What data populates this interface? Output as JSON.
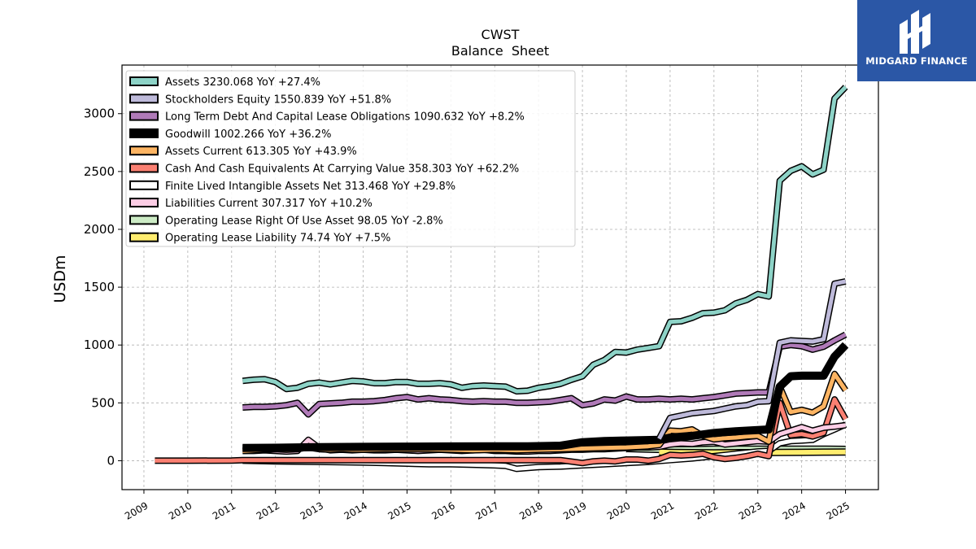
{
  "logo": {
    "text": "MIDGARD FINANCE",
    "icon": "midgard-logo-icon"
  },
  "chart_data": {
    "type": "line",
    "title": "CWST",
    "subtitle": "Balance  Sheet",
    "ylabel": "USDm",
    "xlabel": "",
    "xlim": [
      2008.5,
      2025.75
    ],
    "ylim": [
      -250,
      3420
    ],
    "x_ticks": [
      "2009",
      "2010",
      "2011",
      "2012",
      "2013",
      "2014",
      "2015",
      "2016",
      "2017",
      "2018",
      "2019",
      "2020",
      "2021",
      "2022",
      "2023",
      "2024",
      "2025"
    ],
    "y_ticks": [
      "0",
      "500",
      "1000",
      "1500",
      "2000",
      "2500",
      "3000"
    ],
    "grid": true,
    "legend_placement": "top-left",
    "series": [
      {
        "name": "Assets",
        "legend": "Assets  3230.068 YoY +27.4%",
        "color": "#8dd3c7",
        "width": 5,
        "x": [
          2011.25,
          2011.5,
          2011.75,
          2012.0,
          2012.25,
          2012.5,
          2012.75,
          2013.0,
          2013.25,
          2013.5,
          2013.75,
          2014.0,
          2014.25,
          2014.5,
          2014.75,
          2015.0,
          2015.25,
          2015.5,
          2015.75,
          2016.0,
          2016.25,
          2016.5,
          2016.75,
          2017.0,
          2017.25,
          2017.5,
          2017.75,
          2018.0,
          2018.25,
          2018.5,
          2018.75,
          2019.0,
          2019.25,
          2019.5,
          2019.75,
          2020.0,
          2020.25,
          2020.5,
          2020.75,
          2021.0,
          2021.25,
          2021.5,
          2021.75,
          2022.0,
          2022.25,
          2022.5,
          2022.75,
          2023.0,
          2023.25,
          2023.5,
          2023.75,
          2024.0,
          2024.25,
          2024.5,
          2024.75,
          2025.0
        ],
        "y": [
          690,
          700,
          705,
          680,
          620,
          630,
          665,
          675,
          660,
          675,
          690,
          685,
          670,
          670,
          680,
          680,
          665,
          665,
          670,
          660,
          630,
          645,
          650,
          645,
          640,
          600,
          605,
          630,
          645,
          665,
          700,
          730,
          830,
          870,
          940,
          935,
          960,
          975,
          990,
          1200,
          1205,
          1235,
          1275,
          1280,
          1300,
          1360,
          1390,
          1440,
          1420,
          2420,
          2505,
          2545,
          2475,
          2515,
          3130,
          3230
        ]
      },
      {
        "name": "Stockholders Equity",
        "legend": "Stockholders Equity  1550.839 YoY +51.8%",
        "color": "#bebada",
        "width": 5,
        "x": [
          2020.75,
          2021.0,
          2021.25,
          2021.5,
          2021.75,
          2022.0,
          2022.25,
          2022.5,
          2022.75,
          2023.0,
          2023.25,
          2023.5,
          2023.75,
          2024.0,
          2024.25,
          2024.5,
          2024.75,
          2025.0
        ],
        "y": [
          190,
          370,
          390,
          410,
          420,
          430,
          450,
          470,
          480,
          510,
          515,
          1020,
          1040,
          1035,
          1030,
          1050,
          1530,
          1550
        ]
      },
      {
        "name": "Long Term Debt And Capital Lease Obligations",
        "legend": "Long Term Debt And Capital Lease Obligations  1090.632 YoY +8.2%",
        "color": "#b07ab8",
        "width": 5,
        "x": [
          2011.25,
          2011.5,
          2011.75,
          2012.0,
          2012.25,
          2012.5,
          2012.75,
          2013.0,
          2013.25,
          2013.5,
          2013.75,
          2014.0,
          2014.25,
          2014.5,
          2014.75,
          2015.0,
          2015.25,
          2015.5,
          2015.75,
          2016.0,
          2016.25,
          2016.5,
          2016.75,
          2017.0,
          2017.25,
          2017.5,
          2017.75,
          2018.0,
          2018.25,
          2018.5,
          2018.75,
          2019.0,
          2019.25,
          2019.5,
          2019.75,
          2020.0,
          2020.25,
          2020.5,
          2020.75,
          2021.0,
          2021.25,
          2021.5,
          2021.75,
          2022.0,
          2022.25,
          2022.5,
          2022.75,
          2023.0,
          2023.25,
          2023.5,
          2023.75,
          2024.0,
          2024.25,
          2024.5,
          2024.75,
          2025.0
        ],
        "y": [
          460,
          465,
          465,
          470,
          480,
          500,
          400,
          490,
          495,
          500,
          510,
          510,
          515,
          525,
          540,
          550,
          530,
          540,
          530,
          525,
          515,
          510,
          515,
          510,
          510,
          500,
          500,
          505,
          510,
          525,
          540,
          480,
          495,
          530,
          520,
          555,
          530,
          530,
          535,
          530,
          535,
          530,
          540,
          550,
          565,
          580,
          585,
          590,
          590,
          985,
          1000,
          990,
          960,
          985,
          1040,
          1090
        ]
      },
      {
        "name": "Goodwill",
        "legend": "Goodwill  1002.266 YoY +36.2%",
        "color": "#000000",
        "width": 7,
        "x": [
          2011.25,
          2012.0,
          2013.0,
          2014.0,
          2015.0,
          2016.0,
          2017.0,
          2017.75,
          2018.0,
          2018.5,
          2019.0,
          2019.5,
          2020.0,
          2020.75,
          2021.0,
          2021.5,
          2022.0,
          2022.5,
          2023.0,
          2023.25,
          2023.5,
          2023.75,
          2024.0,
          2024.5,
          2024.75,
          2025.0
        ],
        "y": [
          110,
          112,
          118,
          120,
          122,
          123,
          124,
          125,
          126,
          130,
          160,
          170,
          175,
          180,
          200,
          215,
          240,
          255,
          265,
          270,
          640,
          730,
          735,
          735,
          900,
          1000
        ]
      },
      {
        "name": "Assets Current",
        "legend": "Assets Current  613.305 YoY +43.9%",
        "color": "#fdb462",
        "width": 5,
        "x": [
          2011.25,
          2011.5,
          2011.75,
          2012.0,
          2012.25,
          2012.5,
          2012.75,
          2013.0,
          2013.25,
          2013.5,
          2013.75,
          2014.0,
          2014.5,
          2015.0,
          2015.5,
          2016.0,
          2016.5,
          2017.0,
          2017.5,
          2018.0,
          2018.5,
          2019.0,
          2019.5,
          2020.0,
          2020.5,
          2020.75,
          2021.0,
          2021.25,
          2021.5,
          2021.75,
          2022.0,
          2022.25,
          2022.5,
          2022.75,
          2023.0,
          2023.25,
          2023.5,
          2023.75,
          2024.0,
          2024.25,
          2024.5,
          2024.75,
          2025.0
        ],
        "y": [
          85,
          90,
          95,
          100,
          95,
          100,
          115,
          100,
          95,
          100,
          95,
          95,
          100,
          100,
          100,
          95,
          90,
          95,
          90,
          95,
          100,
          105,
          110,
          115,
          125,
          135,
          260,
          255,
          270,
          215,
          185,
          195,
          200,
          210,
          215,
          165,
          640,
          420,
          440,
          415,
          470,
          750,
          610
        ]
      },
      {
        "name": "Cash And Cash Equivalents At Carrying Value",
        "legend": "Cash And Cash Equivalents At Carrying Value  358.303 YoY +62.2%",
        "color": "#fb8072",
        "width": 5,
        "x": [
          2009.25,
          2010.0,
          2011.0,
          2011.25,
          2012.0,
          2013.0,
          2014.0,
          2015.0,
          2016.0,
          2017.0,
          2017.5,
          2018.0,
          2018.5,
          2019.0,
          2019.25,
          2019.5,
          2019.75,
          2020.0,
          2020.25,
          2020.5,
          2020.75,
          2021.0,
          2021.25,
          2021.5,
          2021.75,
          2022.0,
          2022.25,
          2022.5,
          2022.75,
          2023.0,
          2023.25,
          2023.5,
          2023.75,
          2024.0,
          2024.25,
          2024.5,
          2024.75,
          2025.0
        ],
        "y": [
          0,
          0,
          2,
          5,
          5,
          5,
          5,
          5,
          5,
          5,
          5,
          5,
          5,
          -20,
          -5,
          0,
          -5,
          10,
          10,
          0,
          15,
          50,
          45,
          50,
          60,
          30,
          15,
          25,
          40,
          60,
          40,
          500,
          220,
          230,
          210,
          240,
          530,
          360
        ]
      },
      {
        "name": "Finite Lived Intangible Assets Net",
        "legend": "Finite Lived Intangible Assets Net  313.468 YoY +29.8%",
        "color": "#ffffff",
        "width": 5,
        "x": [
          2011.25,
          2012.0,
          2013.0,
          2014.0,
          2014.5,
          2015.0,
          2015.5,
          2016.0,
          2016.5,
          2017.0,
          2017.25,
          2017.5,
          2018.0,
          2018.5,
          2019.0,
          2019.5,
          2020.0,
          2020.5,
          2021.0,
          2021.5,
          2022.0,
          2022.5,
          2023.0,
          2023.25,
          2023.5,
          2023.75,
          2024.0,
          2024.25,
          2024.5,
          2024.75,
          2025.0
        ],
        "y": [
          0,
          -5,
          -10,
          -15,
          -20,
          -25,
          -30,
          -30,
          -35,
          -40,
          -45,
          -70,
          -55,
          -50,
          -40,
          -30,
          -20,
          -10,
          5,
          20,
          40,
          60,
          80,
          85,
          150,
          170,
          175,
          180,
          230,
          270,
          313
        ]
      },
      {
        "name": "Liabilities Current",
        "legend": "Liabilities Current  307.317 YoY +10.2%",
        "color": "#fccde5",
        "width": 5,
        "x": [
          2011.25,
          2011.5,
          2011.75,
          2012.0,
          2012.25,
          2012.5,
          2012.75,
          2013.0,
          2013.25,
          2013.5,
          2013.75,
          2014.0,
          2014.25,
          2014.5,
          2014.75,
          2015.0,
          2015.25,
          2015.5,
          2015.75,
          2016.0,
          2016.25,
          2016.5,
          2016.75,
          2017.0,
          2017.25,
          2017.5,
          2017.75,
          2018.0,
          2018.25,
          2018.5,
          2018.75,
          2019.0,
          2019.25,
          2019.5,
          2019.75,
          2020.0,
          2020.25,
          2020.5,
          2020.75,
          2021.0,
          2021.25,
          2021.5,
          2021.75,
          2022.0,
          2022.25,
          2022.5,
          2022.75,
          2023.0,
          2023.25,
          2023.5,
          2023.75,
          2024.0,
          2024.25,
          2024.5,
          2024.75,
          2025.0
        ],
        "y": [
          85,
          85,
          90,
          85,
          80,
          85,
          180,
          110,
          90,
          95,
          90,
          95,
          90,
          90,
          95,
          90,
          85,
          90,
          95,
          90,
          85,
          90,
          95,
          85,
          85,
          80,
          80,
          85,
          85,
          90,
          95,
          95,
          100,
          100,
          105,
          110,
          115,
          115,
          120,
          140,
          150,
          145,
          160,
          165,
          140,
          150,
          160,
          170,
          165,
          230,
          260,
          290,
          260,
          285,
          295,
          307
        ]
      },
      {
        "name": "Operating Lease Right Of Use Asset",
        "legend": "Operating Lease Right Of Use Asset  98.05 YoY -2.8%",
        "color": "#ccebc5",
        "width": 6,
        "x": [
          2020.0,
          2020.5,
          2021.0,
          2021.5,
          2022.0,
          2022.5,
          2023.0,
          2023.5,
          2024.0,
          2024.5,
          2025.0
        ],
        "y": [
          105,
          100,
          95,
          95,
          100,
          100,
          100,
          100,
          100,
          100,
          98
        ]
      },
      {
        "name": "Operating Lease Liability",
        "legend": "Operating Lease Liability  74.74 YoY +7.5%",
        "color": "#ffed6f",
        "width": 6,
        "x": [
          2020.75,
          2021.0,
          2021.5,
          2022.0,
          2022.5,
          2023.0,
          2023.5,
          2024.0,
          2024.5,
          2025.0
        ],
        "y": [
          75,
          72,
          70,
          68,
          70,
          70,
          72,
          73,
          74,
          75
        ]
      }
    ]
  }
}
